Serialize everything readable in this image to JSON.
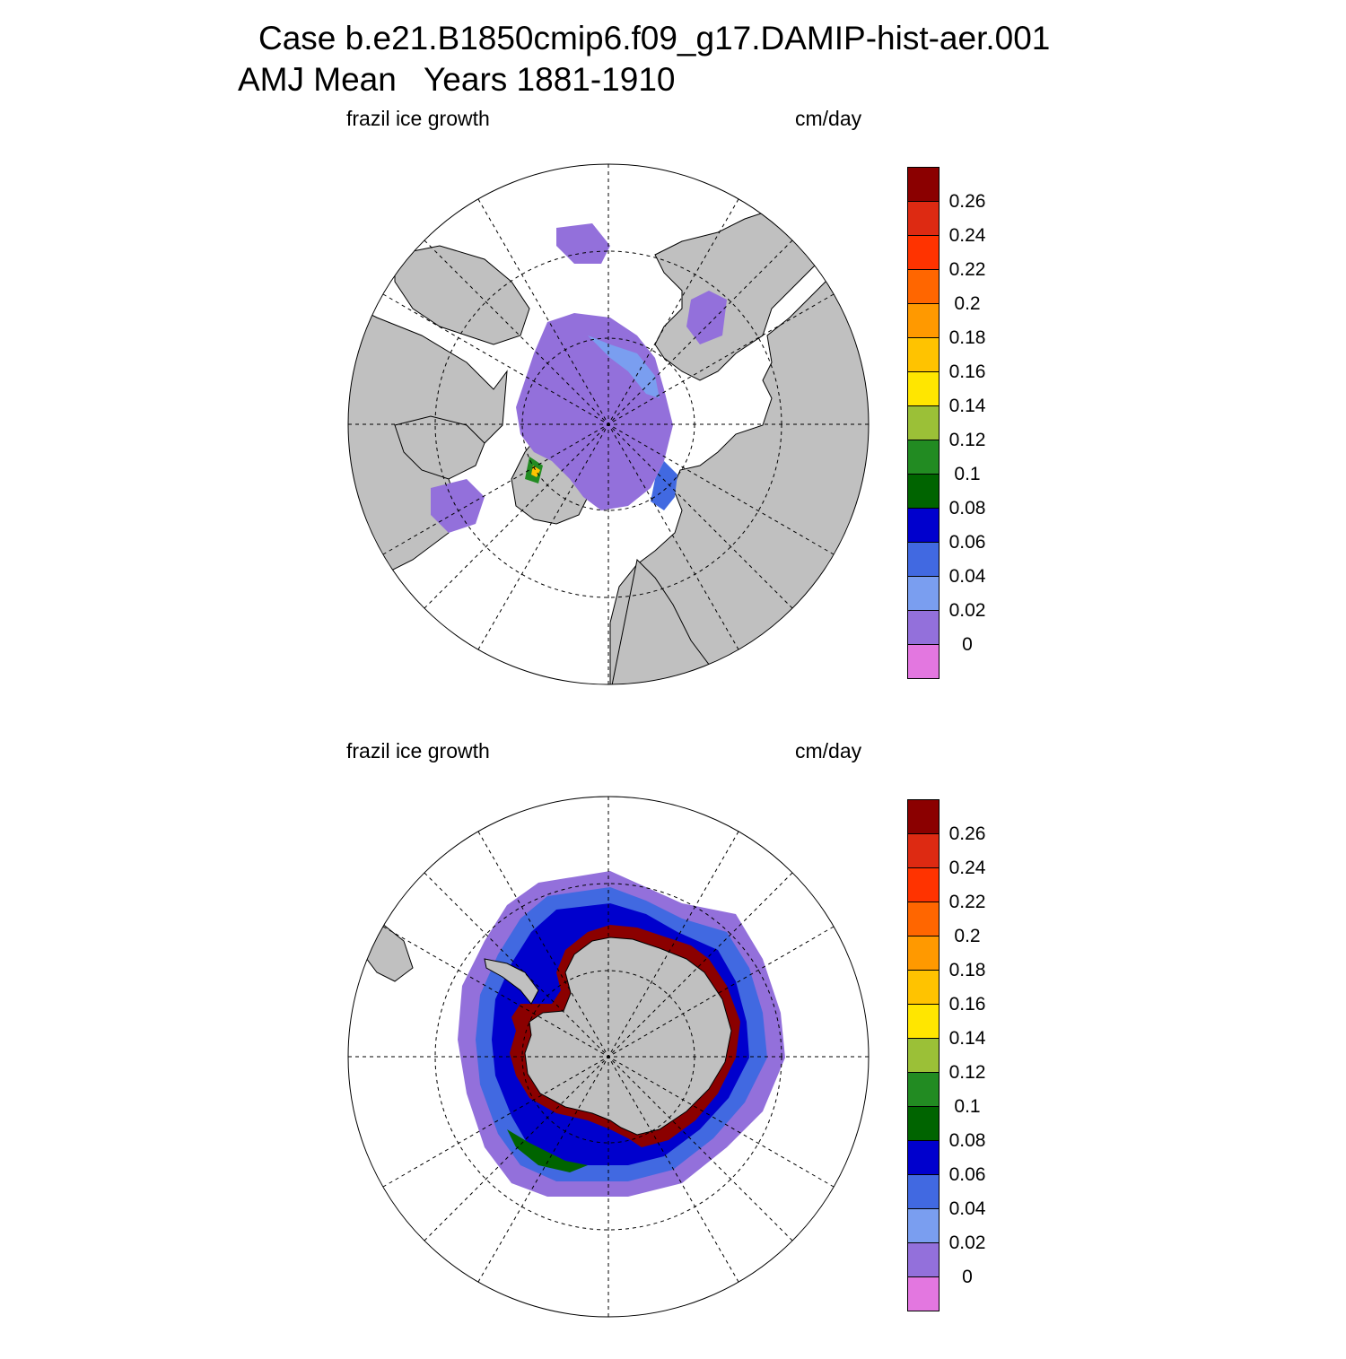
{
  "figure": {
    "title_line1": "Case b.e21.B1850cmip6.f09_g17.DAMIP-hist-aer.001",
    "title_line2": "AMJ Mean   Years 1881-1910"
  },
  "panels": [
    {
      "hemisphere": "north",
      "left_label": "frazil ice growth",
      "right_label": "cm/day"
    },
    {
      "hemisphere": "south",
      "left_label": "frazil ice growth",
      "right_label": "cm/day"
    }
  ],
  "colorbar": {
    "levels": [
      "0.26",
      "0.24",
      "0.22",
      "0.2",
      "0.18",
      "0.16",
      "0.14",
      "0.12",
      "0.1",
      "0.08",
      "0.06",
      "0.04",
      "0.02",
      "0"
    ],
    "colors": [
      "#8b0000",
      "#dd2a12",
      "#ff3300",
      "#ff6600",
      "#ff9900",
      "#ffc300",
      "#ffe600",
      "#9bc037",
      "#228b22",
      "#006400",
      "#0000cd",
      "#4169e1",
      "#7a9ef0",
      "#9370db",
      "#e377e0"
    ]
  },
  "map_colors": {
    "land": "#c0c0c0",
    "ocean_no_data": "#ffffff",
    "grid": "#000000"
  }
}
